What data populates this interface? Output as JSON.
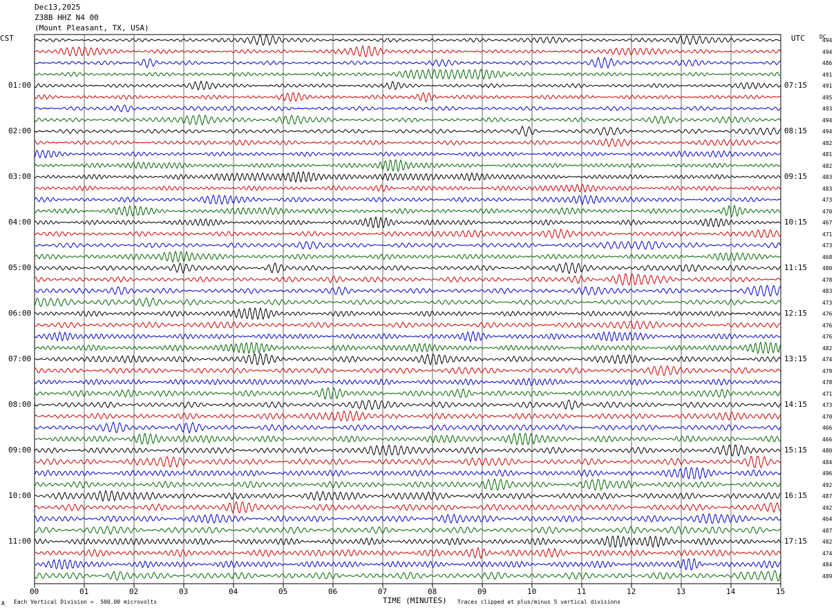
{
  "header": {
    "date": "Dec13,2025",
    "station": "Z38B HHZ N4 00",
    "location": "(Mount Pleasant, TX, USA)"
  },
  "left_tz": "CST",
  "right_tz": "UTC",
  "dc_label": "DC",
  "footer": {
    "corner_mark": "A",
    "scale_note": "Each Vertical Division =  500.00 microvolts",
    "clip_note": "Traces clipped at plus/minus 5 vertical divisions"
  },
  "colors": {
    "trace_cycle": [
      "#000000",
      "#cc0000",
      "#0000cc",
      "#006600"
    ],
    "grid": "#000000"
  },
  "chart_data": {
    "type": "line",
    "xlabel": "TIME (MINUTES)",
    "x_ticks": [
      "00",
      "01",
      "02",
      "03",
      "04",
      "05",
      "06",
      "07",
      "08",
      "09",
      "10",
      "11",
      "12",
      "13",
      "14",
      "15"
    ],
    "xlim": [
      0,
      15
    ],
    "trace_minutes": 15,
    "left_time_labels": [
      "01:00",
      "02:00",
      "03:00",
      "04:00",
      "05:00",
      "06:00",
      "07:00",
      "08:00",
      "09:00",
      "10:00",
      "11:00"
    ],
    "right_time_labels": [
      "07:15",
      "08:15",
      "09:15",
      "10:15",
      "11:15",
      "12:15",
      "13:15",
      "14:15",
      "15:15",
      "16:15",
      "17:15"
    ],
    "hour_label_every_n_traces": 4,
    "dc_offsets": [
      494,
      494,
      486,
      491,
      491,
      495,
      493,
      494,
      494,
      482,
      481,
      482,
      483,
      483,
      473,
      470,
      467,
      471,
      473,
      468,
      480,
      478,
      483,
      473,
      476,
      476,
      476,
      482,
      474,
      479,
      478,
      471,
      473,
      470,
      466,
      466,
      480,
      484,
      496,
      492,
      487,
      492,
      464,
      487,
      482,
      474,
      484,
      489
    ],
    "clip_limit_divisions": 5,
    "vertical_division_microvolts": 500.0
  }
}
